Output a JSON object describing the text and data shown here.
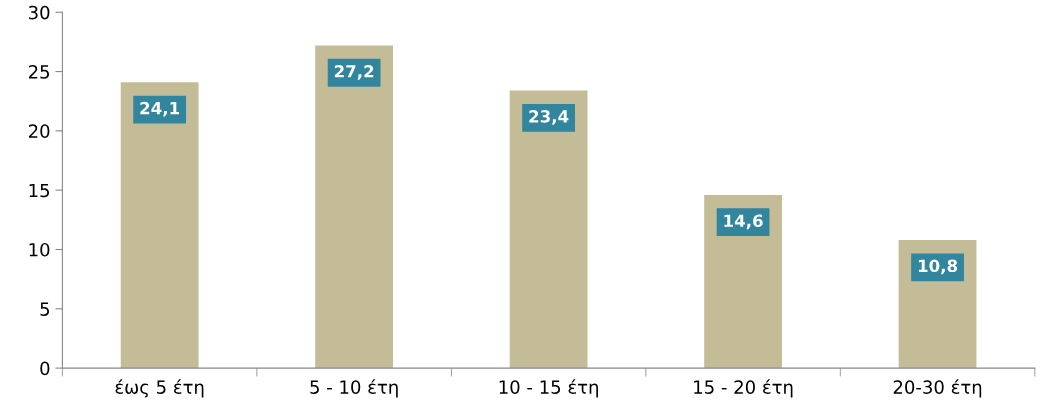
{
  "chart_data": {
    "type": "bar",
    "categories": [
      "έως 5 έτη",
      "5 - 10 έτη",
      "10 - 15 έτη",
      "15 - 20 έτη",
      "20-30 έτη"
    ],
    "values": [
      24.1,
      27.2,
      23.4,
      14.6,
      10.8
    ],
    "value_labels": [
      "24,1",
      "27,2",
      "23,4",
      "14,6",
      "10,8"
    ],
    "color": "#c4bc96",
    "ylim": [
      0,
      30
    ],
    "yticks": [
      0,
      5,
      10,
      15,
      20,
      25,
      30
    ],
    "grid": false,
    "legend": false
  }
}
